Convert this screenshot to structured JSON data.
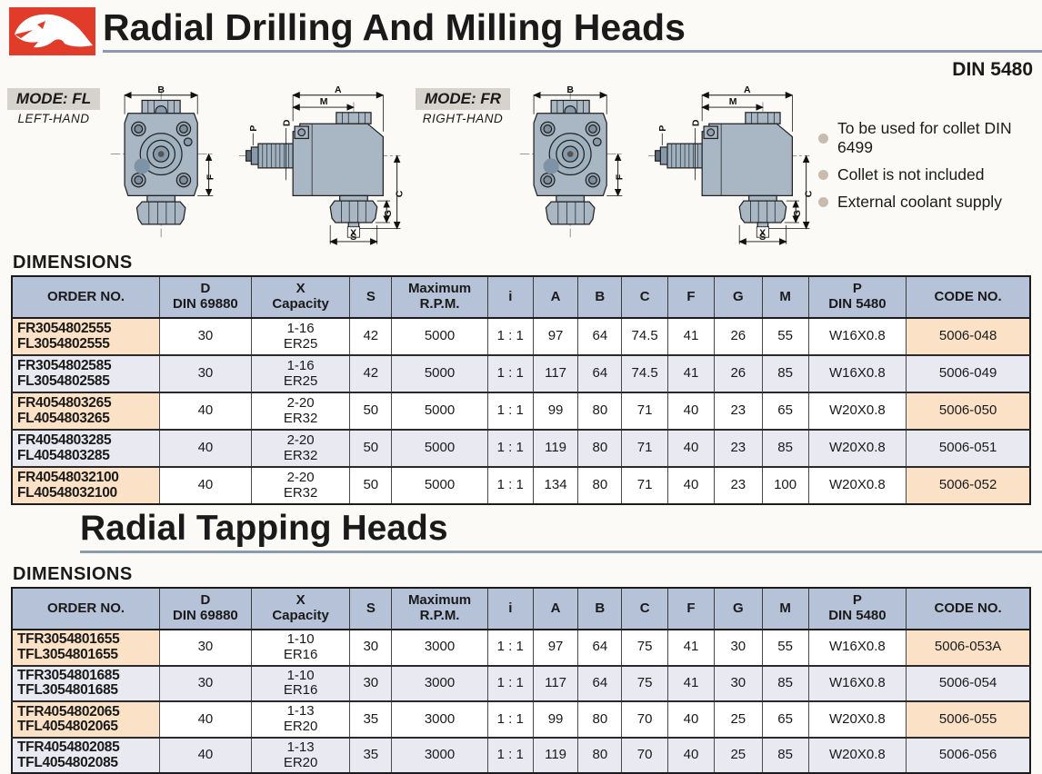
{
  "page": {
    "main_title": "Radial Drilling And Milling Heads",
    "din_spec": "DIN 5480",
    "dimensions_label": "DIMENSIONS",
    "dimensions_label2": "DIMENSIONS",
    "section2_title": "Radial Tapping Heads"
  },
  "modes": [
    {
      "mode": "MODE: FL",
      "hand": "LEFT-HAND"
    },
    {
      "mode": "MODE: FR",
      "hand": "RIGHT-HAND"
    }
  ],
  "notes": [
    "To be used for collet DIN 6499",
    "Collet is not included",
    "External coolant supply"
  ],
  "dim_labels": {
    "a": "A",
    "b": "B",
    "c": "C",
    "d": "D",
    "f": "F",
    "g": "G",
    "m": "M",
    "p": "P",
    "s": "S",
    "x": "X"
  },
  "table1": {
    "headers": [
      "ORDER NO.",
      "D\nDIN 69880",
      "X\nCapacity",
      "S",
      "Maximum\nR.P.M.",
      "i",
      "A",
      "B",
      "C",
      "F",
      "G",
      "M",
      "P\nDIN 5480",
      "CODE NO."
    ],
    "rows": [
      [
        "FR3054802555\nFL3054802555",
        "30",
        "1-16\nER25",
        "42",
        "5000",
        "1 : 1",
        "97",
        "64",
        "74.5",
        "41",
        "26",
        "55",
        "W16X0.8",
        "5006-048"
      ],
      [
        "FR3054802585\nFL3054802585",
        "30",
        "1-16\nER25",
        "42",
        "5000",
        "1 : 1",
        "117",
        "64",
        "74.5",
        "41",
        "26",
        "85",
        "W16X0.8",
        "5006-049"
      ],
      [
        "FR4054803265\nFL4054803265",
        "40",
        "2-20\nER32",
        "50",
        "5000",
        "1 : 1",
        "99",
        "80",
        "71",
        "40",
        "23",
        "65",
        "W20X0.8",
        "5006-050"
      ],
      [
        "FR4054803285\nFL4054803285",
        "40",
        "2-20\nER32",
        "50",
        "5000",
        "1 : 1",
        "119",
        "80",
        "71",
        "40",
        "23",
        "85",
        "W20X0.8",
        "5006-051"
      ],
      [
        "FR40548032100\nFL40548032100",
        "40",
        "2-20\nER32",
        "50",
        "5000",
        "1 : 1",
        "134",
        "80",
        "71",
        "40",
        "23",
        "100",
        "W20X0.8",
        "5006-052"
      ]
    ]
  },
  "table2": {
    "headers": [
      "ORDER NO.",
      "D\nDIN 69880",
      "X\nCapacity",
      "S",
      "Maximum\nR.P.M.",
      "i",
      "A",
      "B",
      "C",
      "F",
      "G",
      "M",
      "P\nDIN 5480",
      "CODE NO."
    ],
    "rows": [
      [
        "TFR3054801655\nTFL3054801655",
        "30",
        "1-10\nER16",
        "30",
        "3000",
        "1 : 1",
        "97",
        "64",
        "75",
        "41",
        "30",
        "55",
        "W16X0.8",
        "5006-053A"
      ],
      [
        "TFR3054801685\nTFL3054801685",
        "30",
        "1-10\nER16",
        "30",
        "3000",
        "1 : 1",
        "117",
        "64",
        "75",
        "41",
        "30",
        "85",
        "W16X0.8",
        "5006-054"
      ],
      [
        "TFR4054802065\nTFL4054802065",
        "40",
        "1-13\nER20",
        "35",
        "3000",
        "1 : 1",
        "99",
        "80",
        "70",
        "40",
        "25",
        "65",
        "W20X0.8",
        "5006-055"
      ],
      [
        "TFR4054802085\nTFL4054802085",
        "40",
        "1-13\nER20",
        "35",
        "3000",
        "1 : 1",
        "119",
        "80",
        "70",
        "40",
        "25",
        "85",
        "W20X0.8",
        "5006-056"
      ]
    ]
  },
  "colors": {
    "brand_red": "#e13b2a",
    "table_header_blue": "#b5c2d7",
    "row_alt": "#e8e9f1",
    "highlight_peach": "#fbe2c6",
    "title_underline": "#8a9bb0",
    "drawing_body": "#a9b7c5"
  }
}
